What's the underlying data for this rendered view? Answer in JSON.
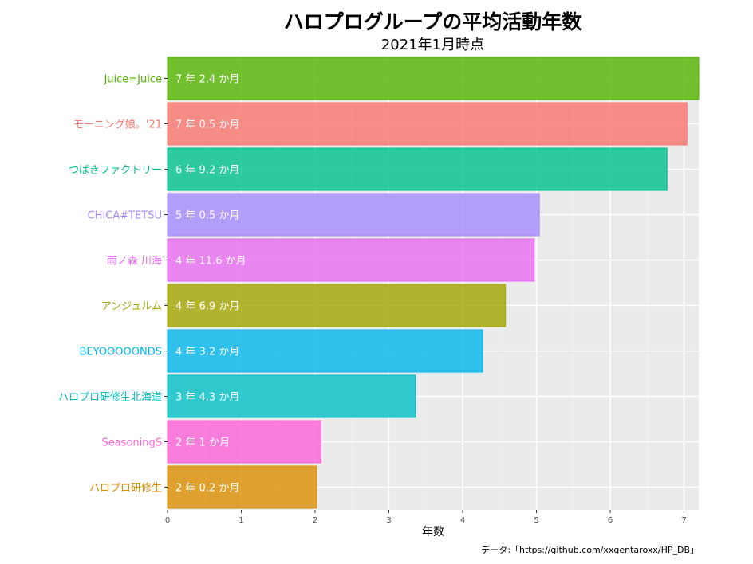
{
  "title": "ハロプログループの平均活動年数",
  "subtitle": "2021年1月時点",
  "caption": "データ:「https://github.com/xxgentaroxx/HP_DB」",
  "chart_data": {
    "type": "bar",
    "orientation": "horizontal",
    "xlabel": "年数",
    "xlim": [
      0,
      7.2
    ],
    "xticks": [
      0,
      1,
      2,
      3,
      4,
      5,
      6,
      7
    ],
    "grid": true,
    "legend": "none",
    "bars": [
      {
        "category": "Juice=Juice",
        "value": 7.2,
        "label": "7 年 2.4 か月",
        "color": "#53B400"
      },
      {
        "category": "モーニング娘。'21",
        "value": 7.04,
        "label": "7 年 0.5 か月",
        "color": "#F8766D"
      },
      {
        "category": "つばきファクトリー",
        "value": 6.77,
        "label": "6 年 9.2 か月",
        "color": "#00C08B"
      },
      {
        "category": "CHICA#TETSU",
        "value": 5.04,
        "label": "5 年 0.5 か月",
        "color": "#A58AFF"
      },
      {
        "category": "雨ノ森 川海",
        "value": 4.97,
        "label": "4 年 11.6 か月",
        "color": "#E76BF3"
      },
      {
        "category": "アンジュルム",
        "value": 4.58,
        "label": "4 年 6.9 か月",
        "color": "#A3A500"
      },
      {
        "category": "BEYOOOOONDS",
        "value": 4.27,
        "label": "4 年 3.2 か月",
        "color": "#00B6EB"
      },
      {
        "category": "ハロプロ研修生北海道",
        "value": 3.36,
        "label": "3 年 4.3 か月",
        "color": "#00BFC4"
      },
      {
        "category": "SeasoningS",
        "value": 2.08,
        "label": "2 年 1 か月",
        "color": "#FB61D7"
      },
      {
        "category": "ハロプロ研修生",
        "value": 2.02,
        "label": "2 年 0.2 か月",
        "color": "#DB8E00"
      }
    ]
  }
}
